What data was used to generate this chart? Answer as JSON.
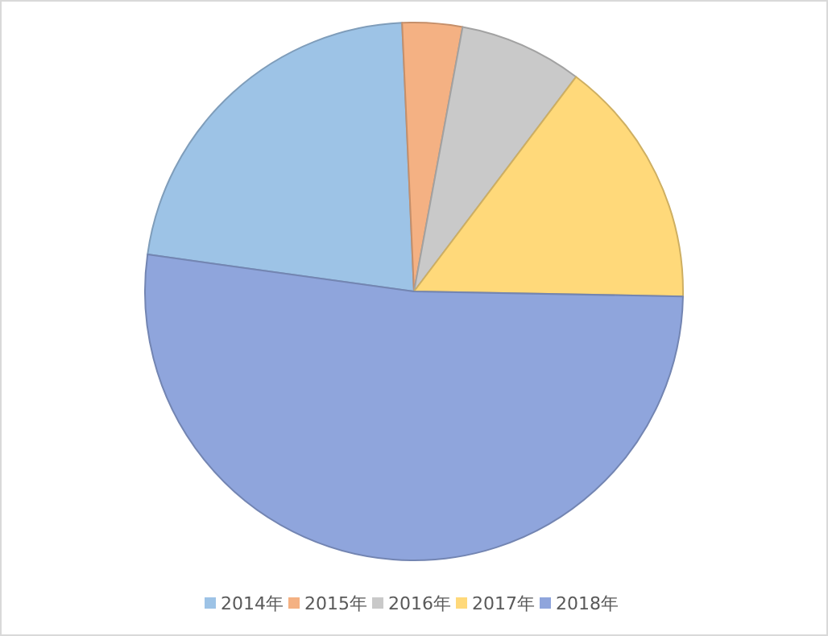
{
  "chart_data": {
    "type": "pie",
    "categories": [
      "2014年",
      "2015年",
      "2016年",
      "2017年",
      "2018年"
    ],
    "values": [
      22.1,
      3.6,
      7.4,
      15,
      51.9
    ],
    "colors": [
      "#9dc3e6",
      "#f4b183",
      "#c9c9c9",
      "#ffd97a",
      "#8fa5dc"
    ],
    "legend": "bottom"
  }
}
